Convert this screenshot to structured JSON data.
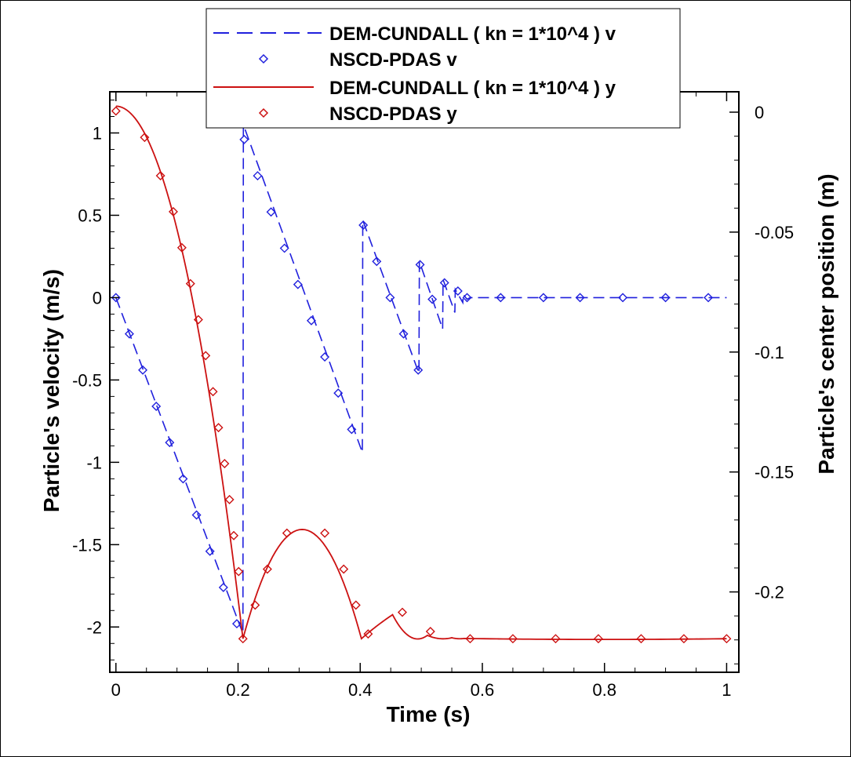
{
  "colors": {
    "velocity": "#2020dd",
    "position": "#cc1111",
    "frame": "#000000"
  },
  "chart_data": {
    "type": "line",
    "xlabel": "Time (s)",
    "ylabel_left": "Particle's velocity (m/s)",
    "ylabel_right": "Particle's center position (m)",
    "xlim": [
      -0.01,
      1.02
    ],
    "ylim_left": [
      -2.275,
      1.25
    ],
    "ylim_right": [
      -0.2335,
      0.0085
    ],
    "x_ticks": [
      "0",
      "0.2",
      "0.4",
      "0.6",
      "0.8",
      "1"
    ],
    "y_left_ticks": [
      "-2",
      "-1.5",
      "-1",
      "-0.5",
      "0",
      "0.5",
      "1"
    ],
    "y_right_ticks": [
      "-0.2",
      "-0.15",
      "-0.1",
      "-0.05",
      "0"
    ],
    "legend": {
      "placement": "top-center",
      "entries": [
        "DEM-CUNDALL ( kn = 1*10^4 ) v",
        "NSCD-PDAS v",
        "DEM-CUNDALL ( kn = 1*10^4 ) y",
        "NSCD-PDAS y"
      ]
    },
    "series": [
      {
        "name": "DEM-CUNDALL ( kn = 1*10^4 ) v",
        "axis": "left",
        "style": "dashed",
        "x": [
          0,
          0.208,
          0.2087,
          0.4035,
          0.4042,
          0.4962,
          0.4969,
          0.535,
          0.5357,
          0.555,
          0.5557,
          0.568,
          0.5687,
          0.575,
          0.58,
          1.0
        ],
        "y": [
          0,
          -2.04,
          1.05,
          -0.94,
          0.47,
          -0.46,
          0.22,
          -0.19,
          0.11,
          -0.09,
          0.05,
          -0.03,
          0.02,
          -0.01,
          0,
          0
        ]
      },
      {
        "name": "NSCD-PDAS v",
        "axis": "left",
        "style": "markers",
        "x": [
          0,
          0.022,
          0.044,
          0.066,
          0.088,
          0.11,
          0.132,
          0.154,
          0.176,
          0.198,
          0.21,
          0.232,
          0.254,
          0.276,
          0.298,
          0.32,
          0.342,
          0.364,
          0.386,
          0.405,
          0.427,
          0.449,
          0.471,
          0.495,
          0.498,
          0.518,
          0.538,
          0.56,
          0.575,
          0.63,
          0.7,
          0.76,
          0.83,
          0.9,
          0.97
        ],
        "y": [
          0,
          -0.22,
          -0.44,
          -0.66,
          -0.88,
          -1.1,
          -1.32,
          -1.54,
          -1.76,
          -1.98,
          0.96,
          0.74,
          0.52,
          0.3,
          0.08,
          -0.14,
          -0.36,
          -0.58,
          -0.8,
          0.44,
          0.22,
          0,
          -0.22,
          -0.44,
          0.2,
          -0.01,
          0.09,
          0.04,
          0,
          0,
          0,
          0,
          0,
          0,
          0
        ]
      },
      {
        "name": "DEM-CUNDALL ( kn = 1*10^4 ) y",
        "axis": "right",
        "style": "solid",
        "x": [
          0,
          0.208,
          0.308,
          0.402,
          0.4135,
          0.453,
          0.49,
          0.51,
          0.54,
          0.55,
          0.56,
          0.57,
          0.6,
          1.0
        ],
        "y": [
          0.0025,
          -0.2195,
          -0.174,
          -0.2195,
          -0.217,
          -0.2095,
          -0.2195,
          -0.2181,
          -0.2195,
          -0.2191,
          -0.2195,
          -0.2194,
          -0.2195,
          -0.2195
        ]
      },
      {
        "name": "NSCD-PDAS y",
        "axis": "right",
        "style": "markers",
        "x": [
          0,
          0.047,
          0.073,
          0.094,
          0.108,
          0.122,
          0.135,
          0.147,
          0.159,
          0.168,
          0.178,
          0.186,
          0.193,
          0.201,
          0.208,
          0.228,
          0.248,
          0.28,
          0.342,
          0.373,
          0.393,
          0.413,
          0.469,
          0.515,
          0.58,
          0.65,
          0.72,
          0.79,
          0.86,
          0.93,
          1.0
        ],
        "y": [
          0.0005,
          -0.0105,
          -0.0265,
          -0.0415,
          -0.0565,
          -0.0715,
          -0.0865,
          -0.1015,
          -0.1165,
          -0.1315,
          -0.1465,
          -0.1615,
          -0.1765,
          -0.1915,
          -0.2195,
          -0.2055,
          -0.1905,
          -0.1755,
          -0.1755,
          -0.1905,
          -0.2055,
          -0.2175,
          -0.2085,
          -0.2165,
          -0.2195,
          -0.2195,
          -0.2195,
          -0.2195,
          -0.2195,
          -0.2195,
          -0.2195
        ]
      }
    ]
  }
}
